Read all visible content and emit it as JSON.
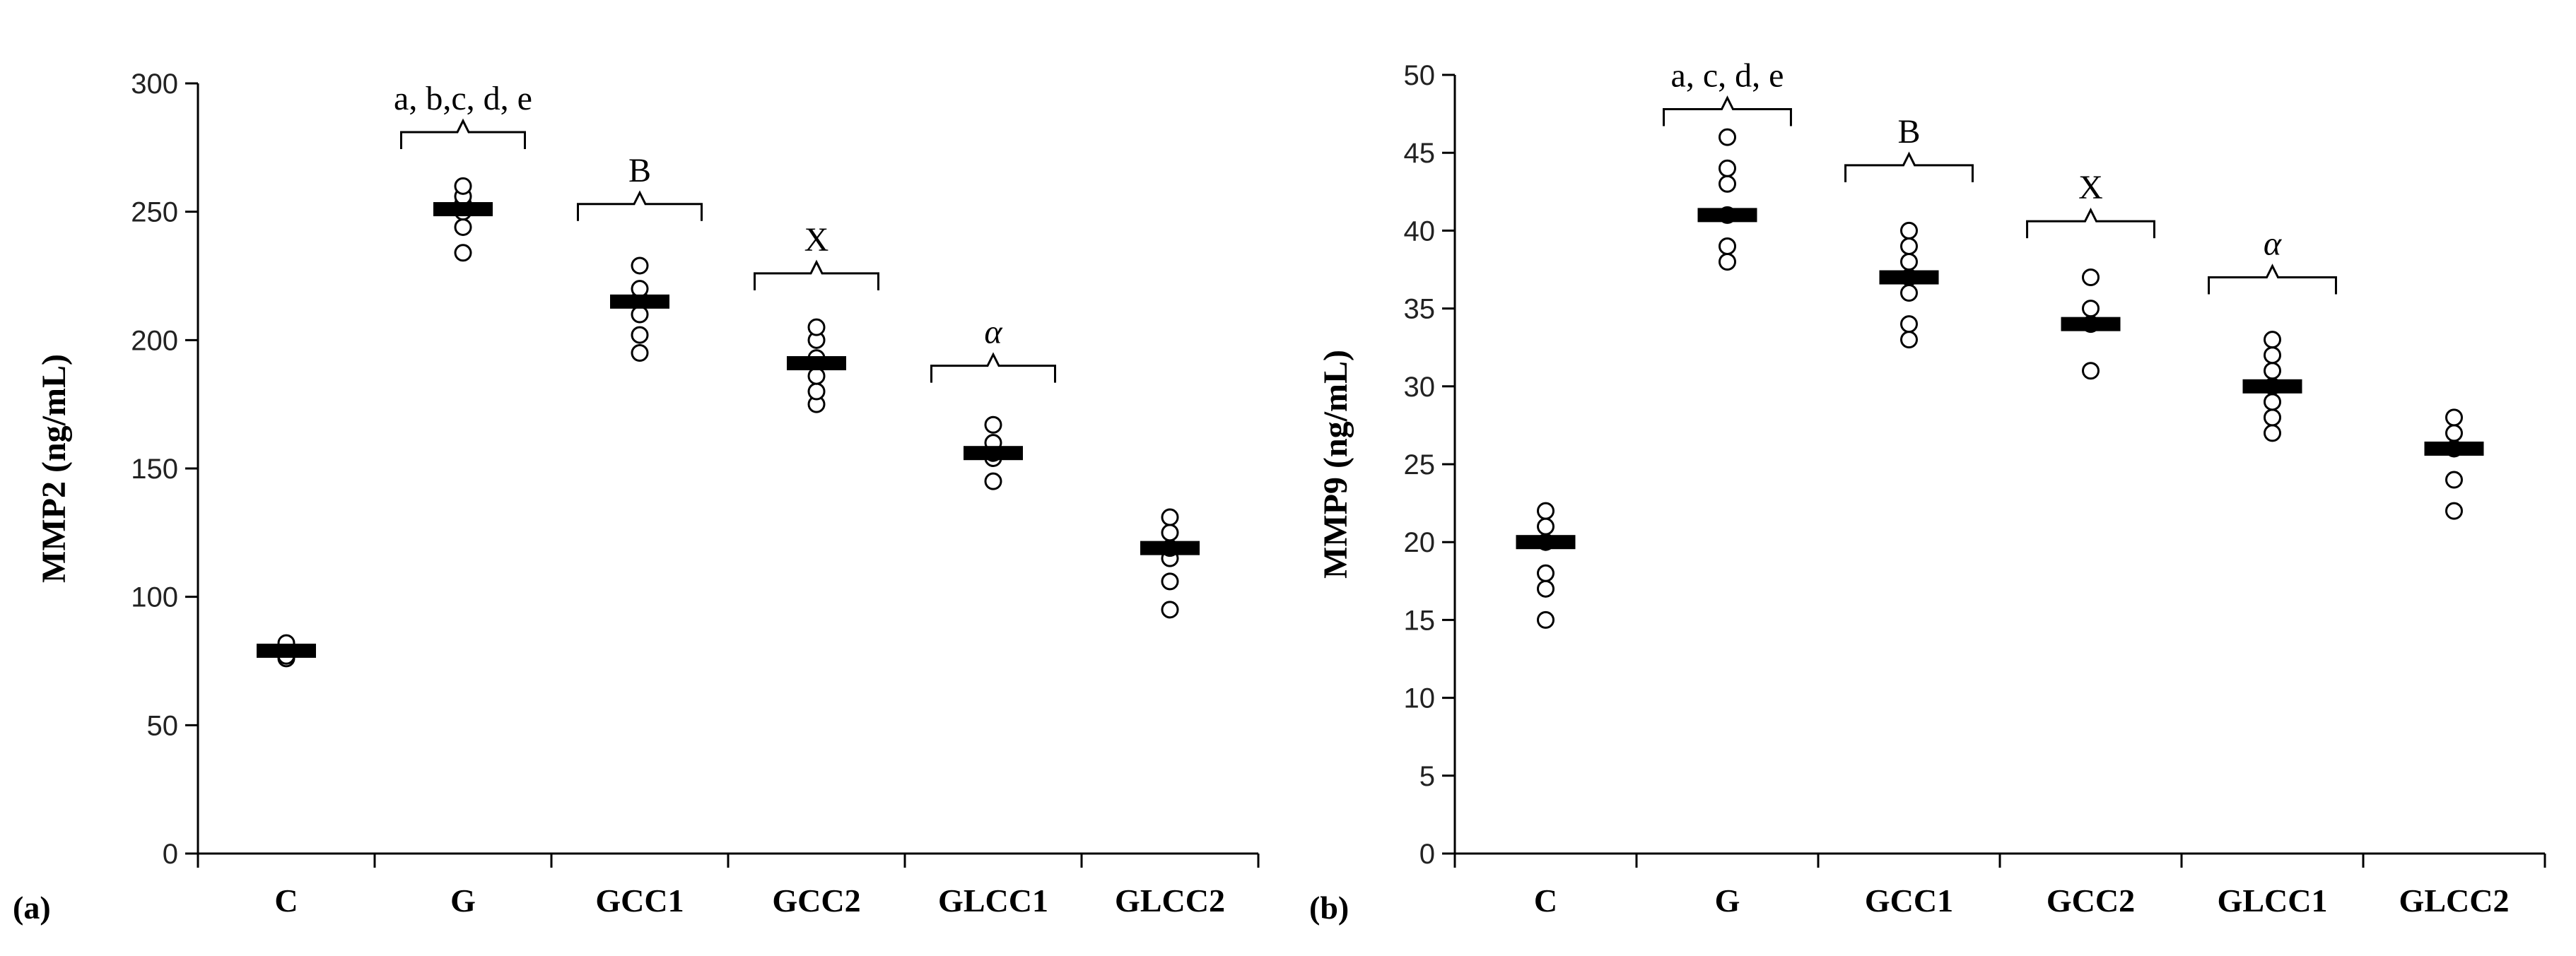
{
  "chart_data": [
    {
      "type": "scatter",
      "panel_label": "(a)",
      "title": "",
      "xlabel": "",
      "ylabel": "MMP2 (ng/mL)",
      "ylim": [
        0,
        300
      ],
      "yticks": [
        0,
        50,
        100,
        150,
        200,
        250,
        300
      ],
      "categories": [
        "C",
        "G",
        "GCC1",
        "GCC2",
        "GLCC1",
        "GLCC2"
      ],
      "means": [
        79,
        251,
        215,
        191,
        156,
        119
      ],
      "points": [
        [
          76,
          78,
          80,
          82,
          77
        ],
        [
          234,
          244,
          250,
          253,
          256,
          260
        ],
        [
          195,
          202,
          210,
          216,
          220,
          229
        ],
        [
          175,
          180,
          186,
          193,
          200,
          205
        ],
        [
          145,
          154,
          156,
          160,
          167
        ],
        [
          95,
          106,
          115,
          119,
          125,
          131
        ]
      ],
      "annotations": [
        {
          "category": "G",
          "text": "a, b,c, d, e",
          "value": 281
        },
        {
          "category": "GCC1",
          "text": "B",
          "value": 253
        },
        {
          "category": "GCC2",
          "text": "X",
          "value": 226
        },
        {
          "category": "GLCC1",
          "text": "α",
          "value": 190
        }
      ]
    },
    {
      "type": "scatter",
      "panel_label": "(b)",
      "title": "",
      "xlabel": "",
      "ylabel": "MMP9 (ng/mL)",
      "ylim": [
        0,
        50
      ],
      "yticks": [
        0,
        5,
        10,
        15,
        20,
        25,
        30,
        35,
        40,
        45,
        50
      ],
      "categories": [
        "C",
        "G",
        "GCC1",
        "GCC2",
        "GLCC1",
        "GLCC2"
      ],
      "means": [
        20,
        41,
        37,
        34,
        30,
        26
      ],
      "points": [
        [
          15,
          17,
          18,
          20,
          21,
          22
        ],
        [
          38,
          39,
          41,
          43,
          44,
          46
        ],
        [
          33,
          34,
          36,
          37,
          38,
          39,
          40
        ],
        [
          31,
          34,
          35,
          37
        ],
        [
          27,
          28,
          29,
          30,
          31,
          32,
          33
        ],
        [
          22,
          24,
          26,
          27,
          28
        ]
      ],
      "annotations": [
        {
          "category": "G",
          "text": "a, c, d, e",
          "value": 47.8
        },
        {
          "category": "GCC1",
          "text": "B",
          "value": 44.2
        },
        {
          "category": "GCC2",
          "text": "X",
          "value": 40.6
        },
        {
          "category": "GLCC1",
          "text": "α",
          "value": 37
        }
      ]
    }
  ]
}
